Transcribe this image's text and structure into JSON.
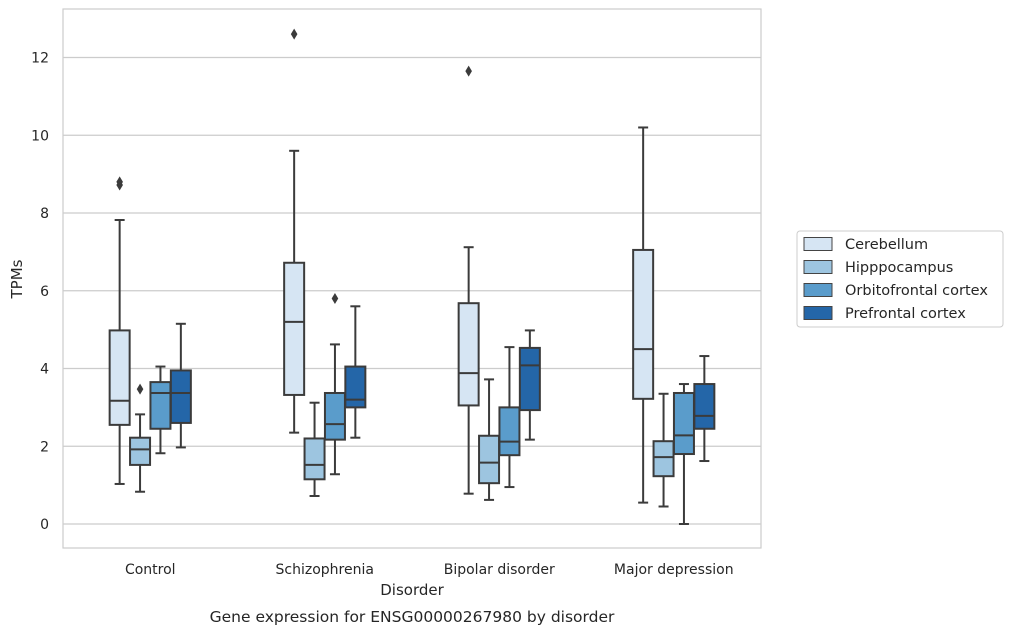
{
  "chart_data": {
    "type": "box",
    "caption": "Gene expression for ENSG00000267980 by disorder",
    "xlabel": "Disorder",
    "ylabel": "TPMs",
    "ylim": [
      -0.6,
      13.0
    ],
    "yticks": [
      0,
      2,
      4,
      6,
      8,
      10,
      12
    ],
    "grid": "horizontal",
    "legend_position": "right",
    "categories": [
      "Control",
      "Schizophrenia",
      "Bipolar disorder",
      "Major depression"
    ],
    "series": [
      {
        "name": "Cerebellum",
        "color": "#d6e5f3",
        "boxes": [
          {
            "whisker_low": 1.03,
            "q1": 2.55,
            "median": 3.17,
            "q3": 4.98,
            "whisker_high": 7.82,
            "outliers": [
              8.72,
              8.8
            ]
          },
          {
            "whisker_low": 2.35,
            "q1": 3.32,
            "median": 5.2,
            "q3": 6.72,
            "whisker_high": 9.6,
            "outliers": [
              12.6
            ]
          },
          {
            "whisker_low": 0.78,
            "q1": 3.05,
            "median": 3.88,
            "q3": 5.68,
            "whisker_high": 7.12,
            "outliers": [
              11.65
            ]
          },
          {
            "whisker_low": 0.55,
            "q1": 3.22,
            "median": 4.5,
            "q3": 7.05,
            "whisker_high": 10.2,
            "outliers": []
          }
        ]
      },
      {
        "name": "Hipppocampus",
        "color": "#9dc5e0",
        "boxes": [
          {
            "whisker_low": 0.83,
            "q1": 1.52,
            "median": 1.92,
            "q3": 2.22,
            "whisker_high": 2.82,
            "outliers": [
              3.47
            ]
          },
          {
            "whisker_low": 0.72,
            "q1": 1.15,
            "median": 1.52,
            "q3": 2.2,
            "whisker_high": 3.12,
            "outliers": []
          },
          {
            "whisker_low": 0.62,
            "q1": 1.05,
            "median": 1.58,
            "q3": 2.27,
            "whisker_high": 3.72,
            "outliers": []
          },
          {
            "whisker_low": 0.45,
            "q1": 1.23,
            "median": 1.72,
            "q3": 2.13,
            "whisker_high": 3.35,
            "outliers": []
          }
        ]
      },
      {
        "name": "Orbitofrontal cortex",
        "color": "#5a9ccb",
        "boxes": [
          {
            "whisker_low": 1.82,
            "q1": 2.45,
            "median": 3.37,
            "q3": 3.65,
            "whisker_high": 4.05,
            "outliers": []
          },
          {
            "whisker_low": 1.28,
            "q1": 2.17,
            "median": 2.57,
            "q3": 3.37,
            "whisker_high": 4.62,
            "outliers": [
              5.8
            ]
          },
          {
            "whisker_low": 0.95,
            "q1": 1.77,
            "median": 2.12,
            "q3": 3.0,
            "whisker_high": 4.55,
            "outliers": []
          },
          {
            "whisker_low": 0.0,
            "q1": 1.8,
            "median": 2.28,
            "q3": 3.37,
            "whisker_high": 3.6,
            "outliers": []
          }
        ]
      },
      {
        "name": "Prefrontal cortex",
        "color": "#2466a8",
        "boxes": [
          {
            "whisker_low": 1.97,
            "q1": 2.6,
            "median": 3.37,
            "q3": 3.95,
            "whisker_high": 5.15,
            "outliers": []
          },
          {
            "whisker_low": 2.22,
            "q1": 3.0,
            "median": 3.2,
            "q3": 4.05,
            "whisker_high": 5.6,
            "outliers": []
          },
          {
            "whisker_low": 2.17,
            "q1": 2.93,
            "median": 4.08,
            "q3": 4.53,
            "whisker_high": 4.98,
            "outliers": []
          },
          {
            "whisker_low": 1.62,
            "q1": 2.45,
            "median": 2.78,
            "q3": 3.6,
            "whisker_high": 4.32,
            "outliers": []
          }
        ]
      }
    ]
  }
}
